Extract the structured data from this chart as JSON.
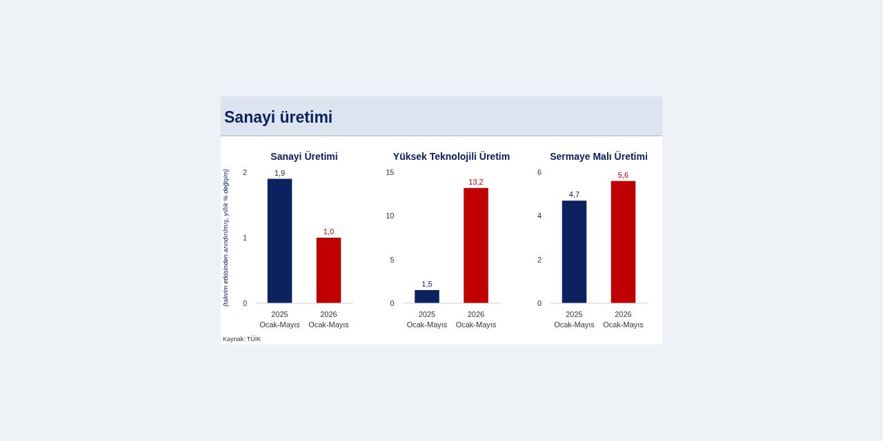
{
  "chart_data": [
    {
      "type": "other",
      "title": "Sanayi üretimi",
      "annotations": [
        "Kaynak: TÜİK"
      ]
    },
    {
      "type": "bar",
      "title": "Sanayi Üretimi",
      "ylabel": "(takvim etkisinden arındırılmış, yıllık % değişim)",
      "categories": [
        "2025\nOcak-Mayıs",
        "2026\nOcak-Mayıs"
      ],
      "values": [
        1.9,
        1.0
      ],
      "colors": [
        "#0b2160",
        "#c00000"
      ],
      "value_labels": [
        "1,9",
        "1,0"
      ],
      "ylim": [
        0,
        2
      ],
      "yticks": [
        0,
        1,
        2
      ],
      "grid": false
    },
    {
      "type": "bar",
      "title": "Yüksek Teknolojili Üretim",
      "categories": [
        "2025\nOcak-Mayıs",
        "2026\nOcak-Mayıs"
      ],
      "values": [
        1.5,
        13.2
      ],
      "colors": [
        "#0b2160",
        "#c00000"
      ],
      "value_labels": [
        "1,5",
        "13,2"
      ],
      "ylim": [
        0,
        15
      ],
      "yticks": [
        0,
        5,
        10,
        15
      ],
      "grid": false
    },
    {
      "type": "bar",
      "title": "Sermaye Malı Üretimi",
      "categories": [
        "2025\nOcak-Mayıs",
        "2026\nOcak-Mayıs"
      ],
      "values": [
        4.7,
        5.6
      ],
      "colors": [
        "#0b2160",
        "#c00000"
      ],
      "value_labels": [
        "4,7",
        "5,6"
      ],
      "ylim": [
        0,
        6
      ],
      "yticks": [
        0,
        2,
        4,
        6
      ],
      "grid": false
    }
  ]
}
